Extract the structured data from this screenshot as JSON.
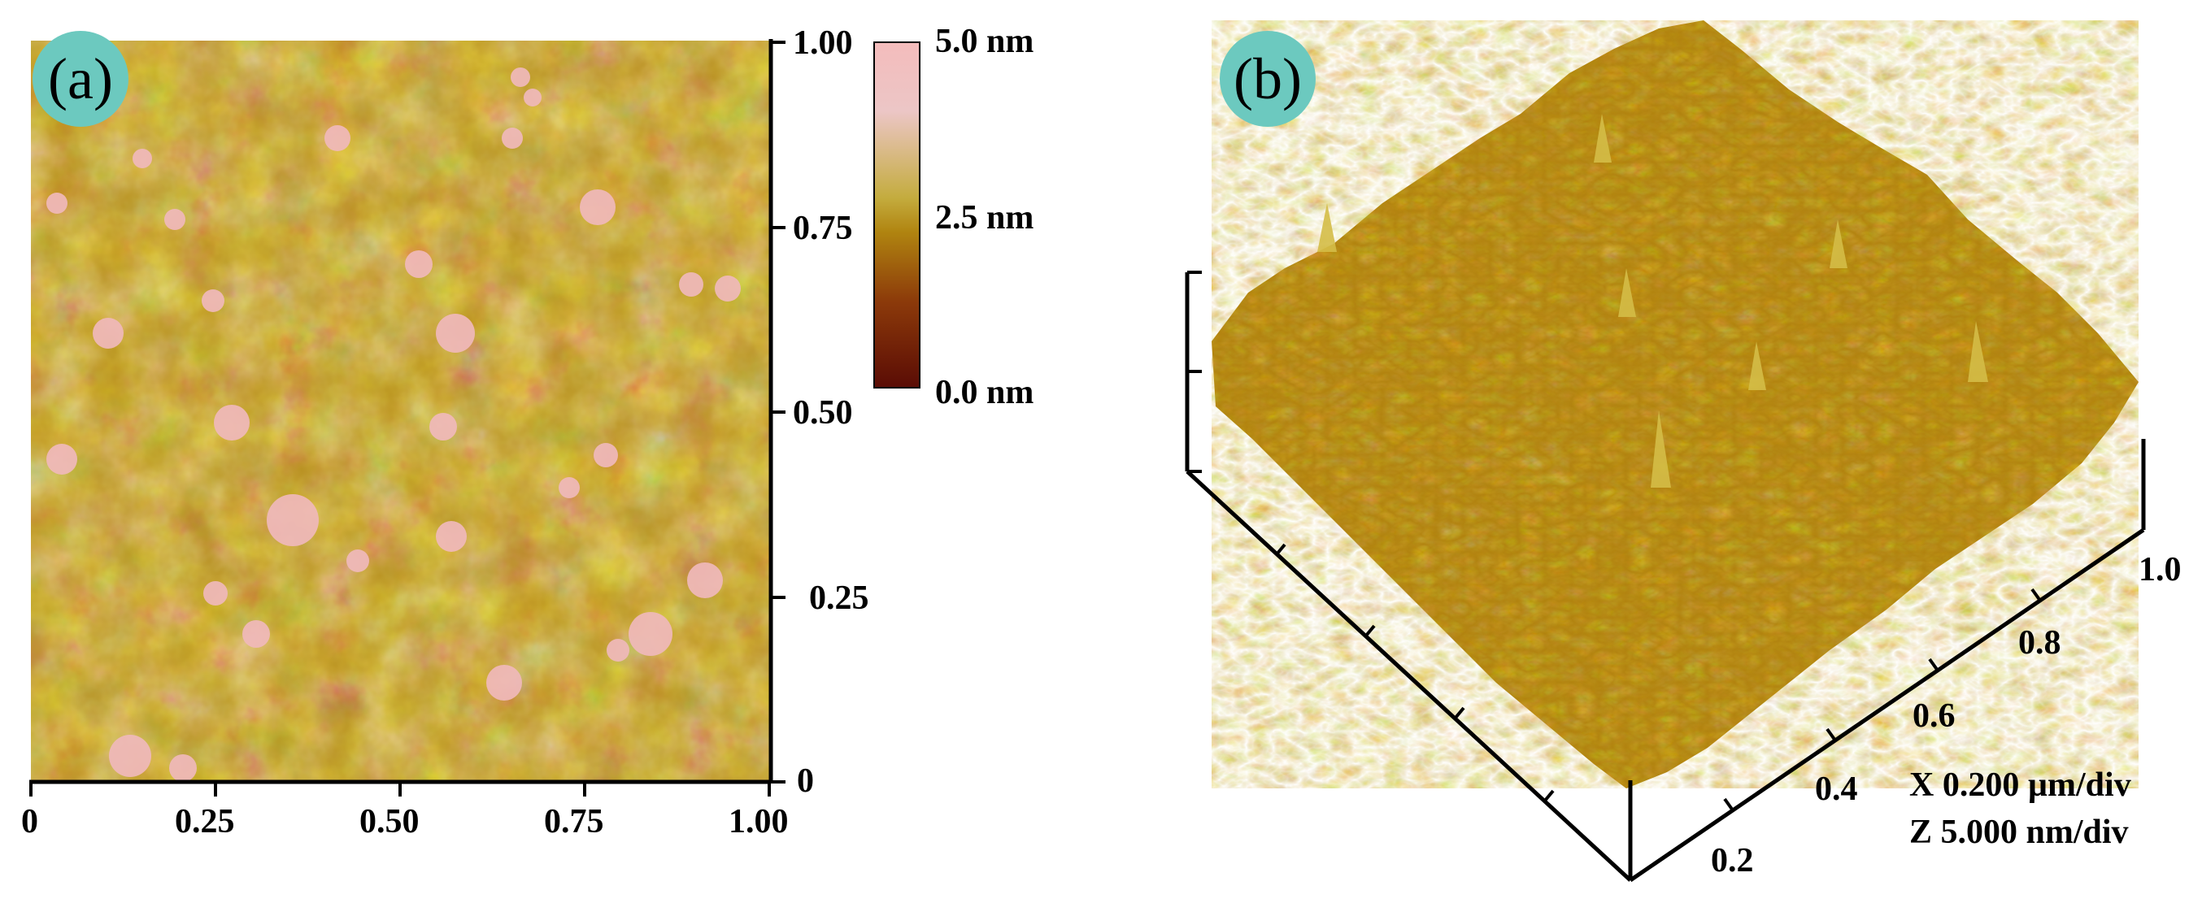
{
  "panel_a": {
    "badge": "(a)",
    "x_ticks": [
      "0",
      "0.25",
      "0.50",
      "0.75",
      "1.00"
    ],
    "y_ticks": [
      "0",
      "0.25",
      "0.50",
      "0.75",
      "1.00"
    ],
    "colorbar": {
      "top_label": "5.0 nm",
      "mid_label": "2.5 nm",
      "bottom_label": "0.0 nm",
      "colors": [
        "#5a0c05",
        "#8c3a0a",
        "#b8860b",
        "#c8b24a",
        "#e8c0c0",
        "#f2b3b3"
      ]
    },
    "colors": {
      "height_low": "#7a3a0a",
      "height_mid": "#c2a12d",
      "height_high": "#f0b8b8"
    }
  },
  "panel_b": {
    "badge": "(b)",
    "y_axis_ticks": [
      "0.2",
      "0.4",
      "0.6",
      "0.8",
      "1.0"
    ],
    "scale_x": "X 0.200 µm/div",
    "scale_z": "Z 5.000 nm/div",
    "colors": {
      "surface_dark": "#6b4500",
      "surface_mid": "#b7860b",
      "surface_light": "#d8c04a"
    }
  }
}
